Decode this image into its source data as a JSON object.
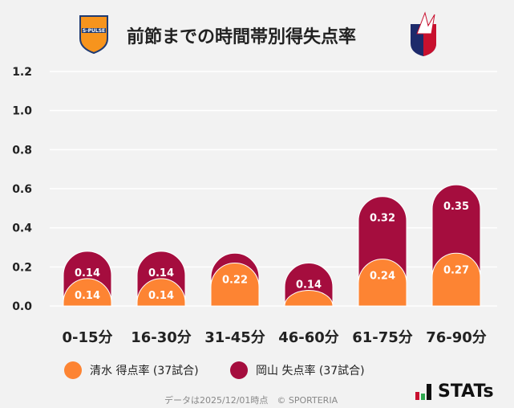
{
  "title": "前節までの時間帯別得失点率",
  "logos": {
    "home": "S-PULSE",
    "away": "Fagiano"
  },
  "colors": {
    "home": "#fd8433",
    "away": "#a50d3e"
  },
  "chart_data": {
    "type": "bar",
    "stacked": true,
    "categories": [
      "0-15分",
      "16-30分",
      "31-45分",
      "46-60分",
      "61-75分",
      "76-90分"
    ],
    "series": [
      {
        "name": "清水 得点率 (37試合)",
        "values": [
          0.14,
          0.14,
          0.22,
          0.08,
          0.24,
          0.27
        ],
        "labels": [
          "0.14",
          "0.14",
          "0.22",
          "",
          "0.24",
          "0.27"
        ]
      },
      {
        "name": "岡山 失点率 (37試合)",
        "values": [
          0.14,
          0.14,
          0.05,
          0.14,
          0.32,
          0.35
        ],
        "labels": [
          "0.14",
          "0.14",
          "",
          "0.14",
          "0.32",
          "0.35"
        ]
      }
    ],
    "yticks": [
      "0.0",
      "0.2",
      "0.4",
      "0.6",
      "0.8",
      "1.0",
      "1.2"
    ],
    "ylim": [
      0,
      1.2
    ],
    "grid": true,
    "legend": "bottom"
  },
  "footer": "データは2025/12/01時点　© SPORTERIA",
  "brand": "STATs"
}
